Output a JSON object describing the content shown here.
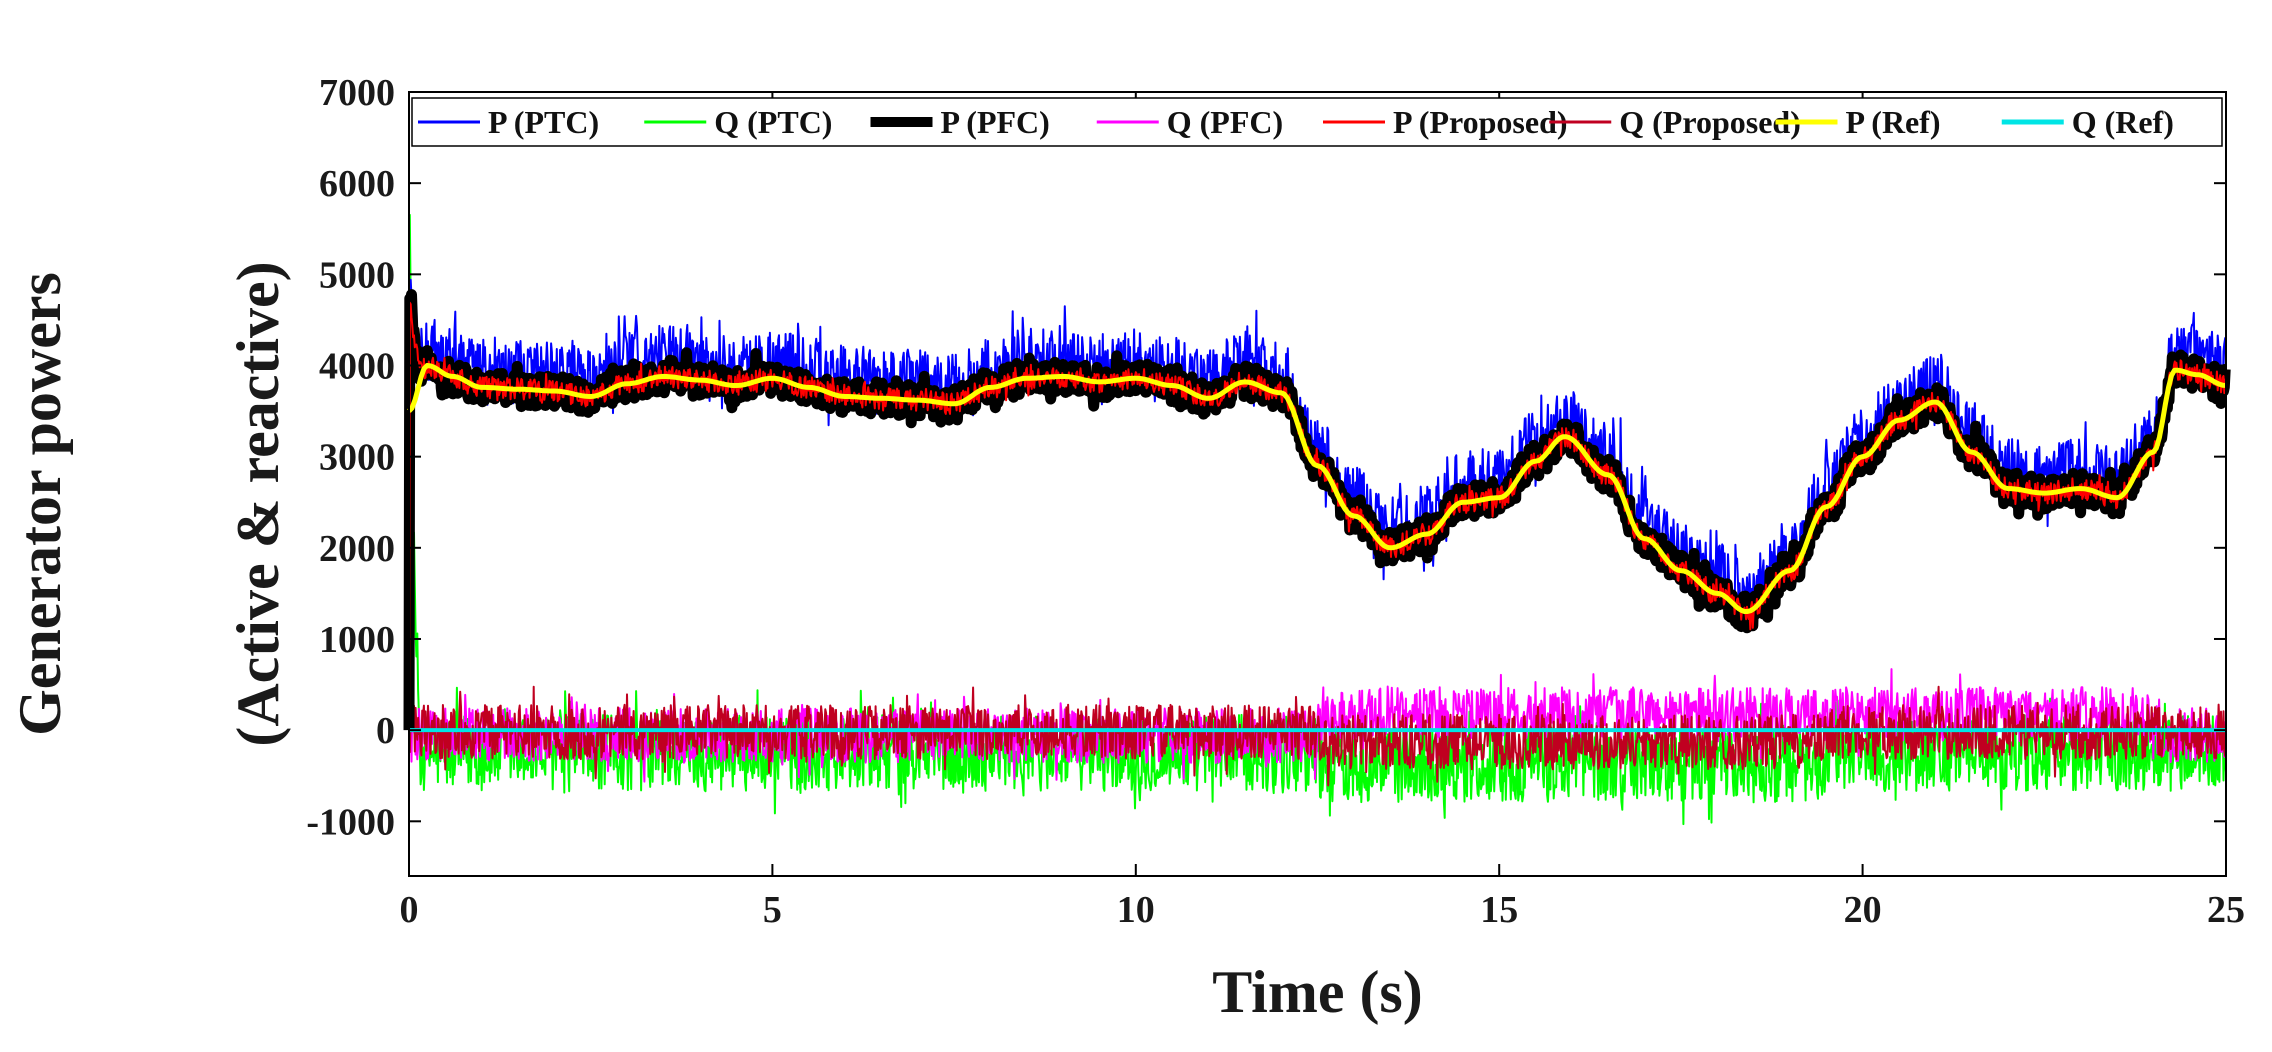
{
  "chart_data": {
    "type": "line",
    "title": "",
    "xlabel": "Time (s)",
    "ylabel_lines": [
      "Generator powers",
      "(Active & reactive)"
    ],
    "xlim": [
      0,
      25
    ],
    "ylim": [
      -1600,
      7000
    ],
    "xticks": [
      0,
      5,
      10,
      15,
      20,
      25
    ],
    "yticks": [
      -1000,
      0,
      1000,
      2000,
      3000,
      4000,
      5000,
      6000,
      7000
    ],
    "grid": false,
    "legend_position": "top",
    "reference_active_power": {
      "x": [
        0,
        0.25,
        0.6,
        1.0,
        1.5,
        2.0,
        2.5,
        3.0,
        3.5,
        4.0,
        4.5,
        5.0,
        5.5,
        6.0,
        6.5,
        7.0,
        7.5,
        8.0,
        8.5,
        9.0,
        9.5,
        10.0,
        10.5,
        11.0,
        11.5,
        12.0,
        12.5,
        13.0,
        13.5,
        14.0,
        14.5,
        15.0,
        15.5,
        15.9,
        16.5,
        17.0,
        17.5,
        18.0,
        18.4,
        19.0,
        19.5,
        20.0,
        20.5,
        21.0,
        21.5,
        22.0,
        22.5,
        23.0,
        23.5,
        24.0,
        24.3,
        24.6,
        25.0
      ],
      "y": [
        3500,
        4000,
        3880,
        3760,
        3740,
        3720,
        3660,
        3800,
        3880,
        3840,
        3780,
        3860,
        3760,
        3660,
        3640,
        3620,
        3580,
        3760,
        3860,
        3880,
        3820,
        3860,
        3780,
        3640,
        3820,
        3700,
        2900,
        2350,
        2000,
        2150,
        2500,
        2550,
        2950,
        3220,
        2800,
        2100,
        1750,
        1500,
        1300,
        1750,
        2450,
        3000,
        3400,
        3600,
        3050,
        2650,
        2600,
        2650,
        2550,
        3050,
        3950,
        3900,
        3780
      ]
    },
    "series": [
      {
        "name": "P (PTC)",
        "color": "#0000ff",
        "role": "active",
        "noise_band": 650
      },
      {
        "name": "Q (PTC)",
        "color": "#00ff00",
        "role": "reactive",
        "noise_band": 420
      },
      {
        "name": "P (PFC)",
        "color": "#000000",
        "role": "active",
        "noise_band": 330
      },
      {
        "name": "Q (PFC)",
        "color": "#ff00ff",
        "role": "reactive",
        "noise_band": 300
      },
      {
        "name": "P (Proposed)",
        "color": "#ff0000",
        "role": "active",
        "noise_band": 200
      },
      {
        "name": "Q (Proposed)",
        "color": "#c00020",
        "role": "reactive",
        "noise_band": 300
      },
      {
        "name": "P (Ref)",
        "color": "#ffff00",
        "role": "active",
        "noise_band": 0
      },
      {
        "name": "Q (Ref)",
        "color": "#00e5e5",
        "role": "reactive",
        "noise_band": 0
      }
    ]
  }
}
